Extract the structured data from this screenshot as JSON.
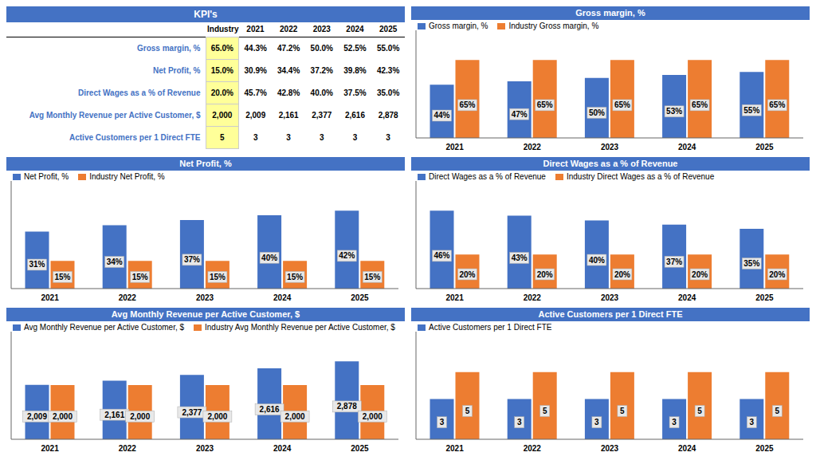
{
  "chart_data": [
    {
      "type": "table",
      "title": "KPI's",
      "color": "#4472C4",
      "categories": [
        "Gross margin, %",
        "Net Profit, %",
        "Direct Wages as a % of Revenue",
        "Avg Monthly Revenue per Active Customer, $",
        "Active Customers per 1 Direct FTE"
      ],
      "series": [
        {
          "name": "Industry",
          "color": "#FFFF99",
          "values": [
            65.0,
            15.0,
            20.0,
            2000,
            5
          ],
          "value_labels": [
            "65.0%",
            "15.0%",
            "20.0%",
            "2,000",
            "5"
          ]
        },
        {
          "name": "2021",
          "values": [
            44.3,
            30.9,
            45.7,
            2009,
            3
          ],
          "value_labels": [
            "44.3%",
            "30.9%",
            "45.7%",
            "2,009",
            "3"
          ]
        },
        {
          "name": "2022",
          "values": [
            47.2,
            34.4,
            42.8,
            2161,
            3
          ],
          "value_labels": [
            "47.2%",
            "34.4%",
            "42.8%",
            "2,161",
            "3"
          ]
        },
        {
          "name": "2023",
          "values": [
            50.0,
            37.2,
            40.0,
            2377,
            3
          ],
          "value_labels": [
            "50.0%",
            "37.2%",
            "40.0%",
            "2,377",
            "3"
          ]
        },
        {
          "name": "2024",
          "values": [
            52.5,
            39.8,
            37.5,
            2616,
            3
          ],
          "value_labels": [
            "52.5%",
            "39.8%",
            "37.5%",
            "2,616",
            "3"
          ]
        },
        {
          "name": "2025",
          "values": [
            55.0,
            42.3,
            35.0,
            2878,
            3
          ],
          "value_labels": [
            "55.0%",
            "42.3%",
            "35.0%",
            "2,878",
            "3"
          ]
        }
      ]
    },
    {
      "type": "bar",
      "title": "Gross margin, %",
      "color": "#4472C4",
      "categories": [
        "2021",
        "2022",
        "2023",
        "2024",
        "2025"
      ],
      "series": [
        {
          "name": "Gross margin, %",
          "color": "#4472C4",
          "values": [
            44.3,
            47.2,
            50.0,
            52.5,
            55.0
          ],
          "value_labels": [
            "44%",
            "47%",
            "50%",
            "53%",
            "55%"
          ]
        },
        {
          "name": "Industry Gross margin, %",
          "color": "#ED7D31",
          "values": [
            65.0,
            65.0,
            65.0,
            65.0,
            65.0
          ],
          "value_labels": [
            "65%",
            "65%",
            "65%",
            "65%",
            "65%"
          ]
        }
      ],
      "ylim": [
        0,
        89.7
      ],
      "tick_labels": "x",
      "legend": "upper left",
      "grid": false,
      "data_labels": true
    },
    {
      "type": "bar",
      "title": "Net Profit, %",
      "color": "#4472C4",
      "categories": [
        "2021",
        "2022",
        "2023",
        "2024",
        "2025"
      ],
      "series": [
        {
          "name": "Net Profit, %",
          "color": "#4472C4",
          "values": [
            30.9,
            34.4,
            37.2,
            39.8,
            42.3
          ],
          "value_labels": [
            "31%",
            "34%",
            "37%",
            "40%",
            "42%"
          ]
        },
        {
          "name": "Industry Net Profit, %",
          "color": "#ED7D31",
          "values": [
            15.0,
            15.0,
            15.0,
            15.0,
            15.0
          ],
          "value_labels": [
            "15%",
            "15%",
            "15%",
            "15%",
            "15%"
          ]
        }
      ],
      "ylim": [
        0,
        58.374
      ],
      "tick_labels": "x",
      "legend": "upper left",
      "grid": false,
      "data_labels": true
    },
    {
      "type": "bar",
      "title": "Direct Wages as a % of Revenue",
      "color": "#4472C4",
      "categories": [
        "2021",
        "2022",
        "2023",
        "2024",
        "2025"
      ],
      "series": [
        {
          "name": "Direct Wages as a % of Revenue",
          "color": "#4472C4",
          "values": [
            45.7,
            42.8,
            40.0,
            37.5,
            35.0
          ],
          "value_labels": [
            "46%",
            "43%",
            "40%",
            "37%",
            "35%"
          ]
        },
        {
          "name": "Industry Direct Wages as a % of Revenue",
          "color": "#ED7D31",
          "values": [
            20.0,
            20.0,
            20.0,
            20.0,
            20.0
          ],
          "value_labels": [
            "20%",
            "20%",
            "20%",
            "20%",
            "20%"
          ]
        }
      ],
      "ylim": [
        0,
        63.066
      ],
      "tick_labels": "x",
      "legend": "upper left",
      "grid": false,
      "data_labels": true
    },
    {
      "type": "bar",
      "title": "Avg Monthly Revenue per Active Customer, $",
      "color": "#4472C4",
      "categories": [
        "2021",
        "2022",
        "2023",
        "2024",
        "2025"
      ],
      "series": [
        {
          "name": "Avg Monthly Revenue per Active Customer, $",
          "color": "#4472C4",
          "values": [
            2009,
            2161,
            2377,
            2616,
            2878
          ],
          "value_labels": [
            "2,009",
            "2,161",
            "2,377",
            "2,616",
            "2,878"
          ]
        },
        {
          "name": "Industry Avg Monthly Revenue per Active Customer, $",
          "color": "#ED7D31",
          "values": [
            2000,
            2000,
            2000,
            2000,
            2000
          ],
          "value_labels": [
            "2,000",
            "2,000",
            "2,000",
            "2,000",
            "2,000"
          ]
        }
      ],
      "ylim": [
        0,
        3971.64
      ],
      "tick_labels": "x",
      "legend": "upper left",
      "grid": false,
      "data_labels": true
    },
    {
      "type": "bar",
      "title": "Active Customers per 1 Direct FTE",
      "color": "#4472C4",
      "categories": [
        "2021",
        "2022",
        "2023",
        "2024",
        "2025"
      ],
      "series": [
        {
          "name": "Active Customers per 1 Direct FTE",
          "color": "#4472C4",
          "values": [
            3,
            3,
            3,
            3,
            3
          ]
        },
        {
          "color": "#ED7D31",
          "values": [
            5,
            5,
            5,
            5,
            5
          ]
        }
      ],
      "ylim": [
        0,
        8
      ],
      "tick_labels": "x",
      "legend": "upper left",
      "grid": false,
      "data_labels": true
    }
  ]
}
